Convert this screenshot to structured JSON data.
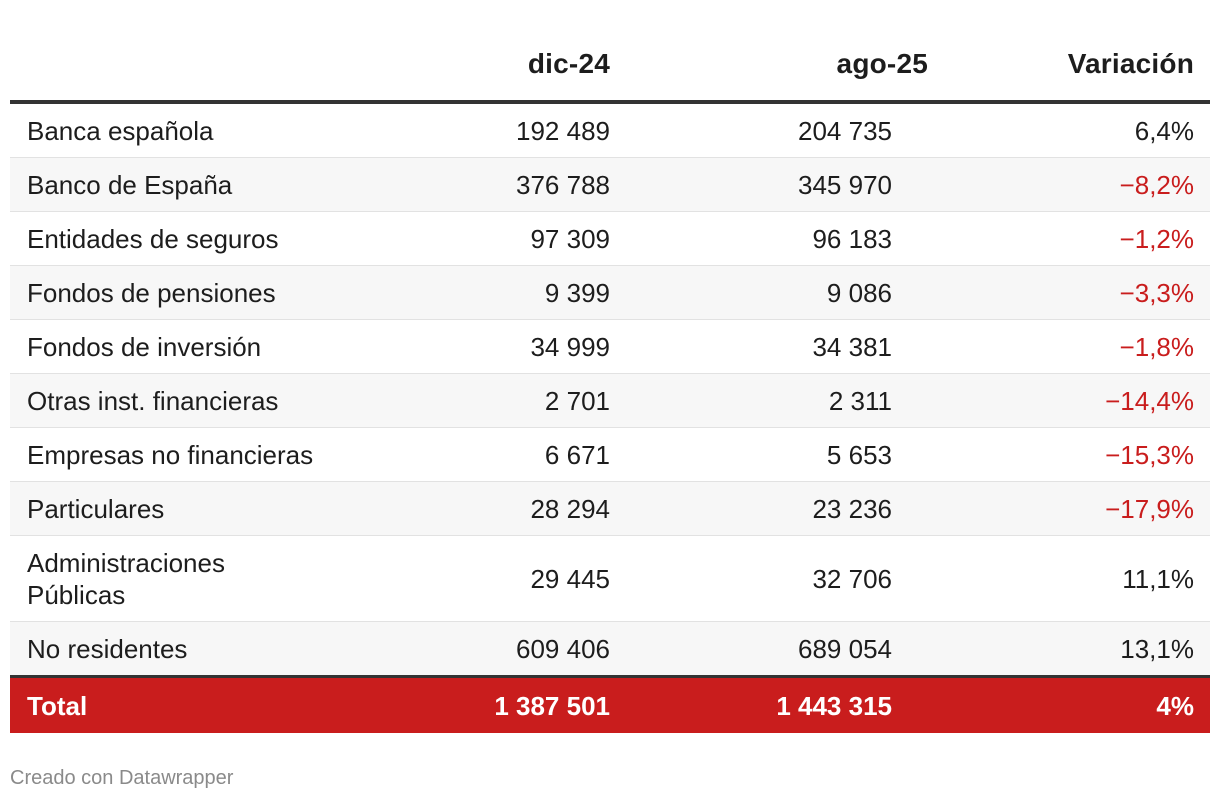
{
  "chart_data": {
    "type": "table",
    "columns": [
      "",
      "dic-24",
      "ago-25",
      "Variación"
    ],
    "rows": [
      {
        "name": "Banca española",
        "dic": "192 489",
        "ago": "204 735",
        "var": "6,4%",
        "negative": false
      },
      {
        "name": "Banco de España",
        "dic": "376 788",
        "ago": "345 970",
        "var": "−8,2%",
        "negative": true
      },
      {
        "name": "Entidades de seguros",
        "dic": "97 309",
        "ago": "96 183",
        "var": "−1,2%",
        "negative": true
      },
      {
        "name": "Fondos de pensiones",
        "dic": "9 399",
        "ago": "9 086",
        "var": "−3,3%",
        "negative": true
      },
      {
        "name": "Fondos de inversión",
        "dic": "34 999",
        "ago": "34 381",
        "var": "−1,8%",
        "negative": true
      },
      {
        "name": "Otras inst. financieras",
        "dic": "2 701",
        "ago": "2 311",
        "var": "−14,4%",
        "negative": true
      },
      {
        "name": "Empresas no financieras",
        "dic": "6 671",
        "ago": "5 653",
        "var": "−15,3%",
        "negative": true
      },
      {
        "name": "Particulares",
        "dic": "28 294",
        "ago": "23 236",
        "var": "−17,9%",
        "negative": true
      },
      {
        "name": "Administraciones Públicas",
        "dic": "29 445",
        "ago": "32 706",
        "var": "11,1%",
        "negative": false
      },
      {
        "name": "No residentes",
        "dic": "609 406",
        "ago": "689 054",
        "var": "13,1%",
        "negative": false
      }
    ],
    "total": {
      "name": "Total",
      "dic": "1 387 501",
      "ago": "1 443 315",
      "var": "4%"
    }
  },
  "colors": {
    "negative": "#c91d1d",
    "total_background": "#c91d1d",
    "header_rule": "#333333"
  },
  "footer": {
    "credit": "Creado con Datawrapper"
  }
}
